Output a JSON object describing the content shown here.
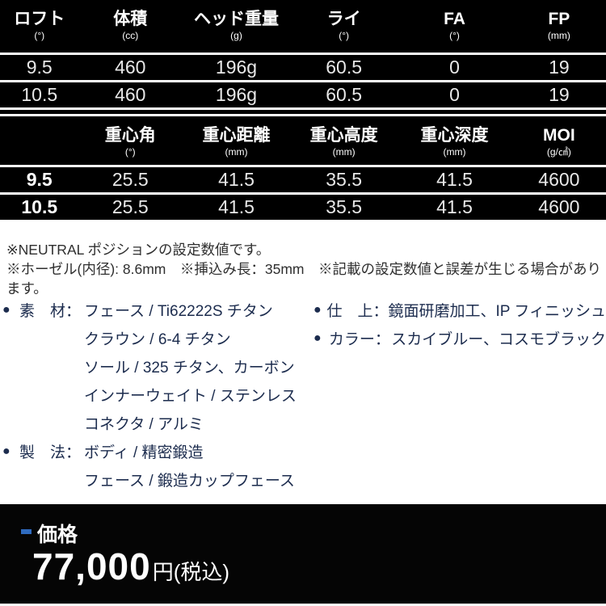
{
  "spec_table_1": {
    "columns": [
      {
        "label": "ロフト",
        "unit": "(°)"
      },
      {
        "label": "体積",
        "unit": "(cc)"
      },
      {
        "label": "ヘッド重量",
        "unit": "(g)"
      },
      {
        "label": "ライ",
        "unit": "(°)"
      },
      {
        "label": "FA",
        "unit": "(°)"
      },
      {
        "label": "FP",
        "unit": "(mm)"
      }
    ],
    "rows": [
      [
        "9.5",
        "460",
        "196g",
        "60.5",
        "0",
        "19"
      ],
      [
        "10.5",
        "460",
        "196g",
        "60.5",
        "0",
        "19"
      ]
    ]
  },
  "spec_table_2": {
    "columns": [
      {
        "label": "",
        "unit": ""
      },
      {
        "label": "重心角",
        "unit": "(°)"
      },
      {
        "label": "重心距離",
        "unit": "(mm)"
      },
      {
        "label": "重心高度",
        "unit": "(mm)"
      },
      {
        "label": "重心深度",
        "unit": "(mm)"
      },
      {
        "label": "MOI",
        "unit": "(g/㎠)"
      }
    ],
    "rows": [
      [
        "9.5",
        "25.5",
        "41.5",
        "35.5",
        "41.5",
        "4600"
      ],
      [
        "10.5",
        "25.5",
        "41.5",
        "35.5",
        "41.5",
        "4600"
      ]
    ]
  },
  "notes": [
    "※NEUTRAL ポジションの設定数値です。",
    "※ホーゼル(内径): 8.6mm　※挿込み長：35mm　※記載の設定数値と誤差が生じる場合があります。"
  ],
  "details": {
    "left": [
      {
        "bullet": "●",
        "label": "素　材：",
        "text": "フェース / Ti62222S チタン"
      },
      {
        "bullet": "",
        "label": "",
        "text": "クラウン / 6-4 チタン"
      },
      {
        "bullet": "",
        "label": "",
        "text": "ソール / 325 チタン、カーボン"
      },
      {
        "bullet": "",
        "label": "",
        "text": "インナーウェイト / ステンレス"
      },
      {
        "bullet": "",
        "label": "",
        "text": "コネクタ / アルミ"
      },
      {
        "bullet": "●",
        "label": "製　法：",
        "text": "ボディ / 精密鍛造"
      },
      {
        "bullet": "",
        "label": "",
        "text": "フェース / 鍛造カップフェース"
      }
    ],
    "right": [
      {
        "bullet": "●",
        "label": "仕　上：",
        "text": "鏡面研磨加工、IP フィニッシュ"
      },
      {
        "bullet": "●",
        "label": "カラー：",
        "text": "スカイブルー、コスモブラック"
      }
    ]
  },
  "price": {
    "label": "価格",
    "amount": "77,000",
    "suffix": "円(税込)",
    "accent_color": "#2f6bbf"
  },
  "colors": {
    "table_bg": "#000000",
    "table_text": "#e8e8e8",
    "divider": "#ffffff",
    "note_text": "#2f2f2f",
    "detail_text": "#1c2c4e",
    "price_bg": "#050505"
  }
}
